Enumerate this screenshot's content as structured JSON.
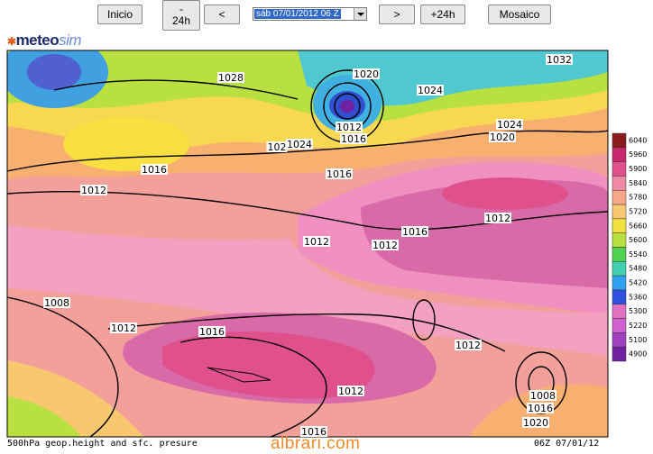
{
  "toolbar": {
    "buttons": [
      "Inicio",
      "-\n24h",
      "<",
      ">",
      "+24h",
      "Mosaico"
    ],
    "select": "sáb 07/01/2012 06 Z"
  },
  "logo": {
    "brand": "meteo",
    "suffix": "sim"
  },
  "map": {
    "isobar_labels": [
      "1028",
      "1020",
      "1032",
      "1024",
      "1012",
      "1016",
      "1024",
      "1020",
      "102",
      "1024",
      "1016",
      "1016",
      "1012",
      "1012",
      "1016",
      "1012",
      "1012",
      "1008",
      "1012",
      "1016",
      "1012",
      "1012",
      "1008",
      "1016",
      "1020",
      "1016"
    ],
    "colorbar": [
      {
        "label": "6040",
        "color": "#8b1a1a"
      },
      {
        "label": "5960",
        "color": "#c8286e"
      },
      {
        "label": "5900",
        "color": "#e0508c"
      },
      {
        "label": "5840",
        "color": "#f088a8"
      },
      {
        "label": "5780",
        "color": "#f8a888"
      },
      {
        "label": "5720",
        "color": "#f8c870"
      },
      {
        "label": "5660",
        "color": "#f0e040"
      },
      {
        "label": "5600",
        "color": "#b8e040"
      },
      {
        "label": "5540",
        "color": "#50d050"
      },
      {
        "label": "5480",
        "color": "#40d0b0"
      },
      {
        "label": "5420",
        "color": "#30a0f0"
      },
      {
        "label": "5360",
        "color": "#3050e0"
      },
      {
        "label": "5300",
        "color": "#e070c0"
      },
      {
        "label": "5220",
        "color": "#d060d0"
      },
      {
        "label": "5100",
        "color": "#a040c0"
      },
      {
        "label": "4900",
        "color": "#7020a0"
      }
    ]
  },
  "footer": {
    "caption": "500hPa geop.height and sfc. presure",
    "watermark": "albrari.com",
    "run": "06Z 07/01/12"
  }
}
